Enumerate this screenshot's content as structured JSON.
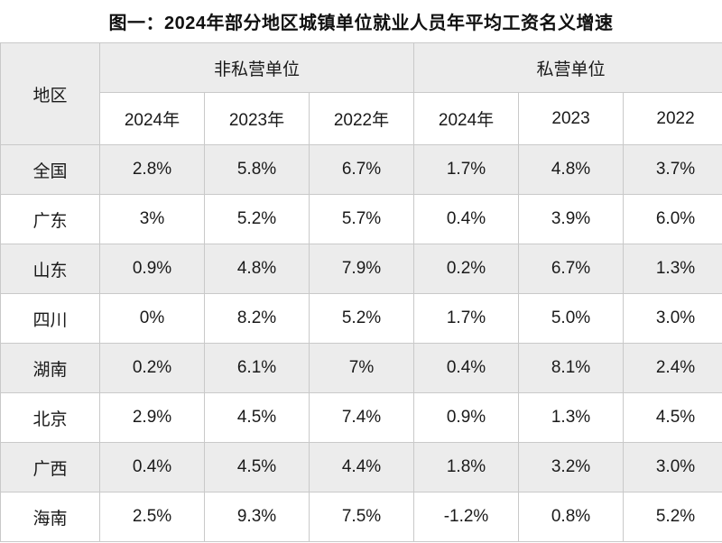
{
  "chart_data": {
    "type": "table",
    "title": "图一：2024年部分地区城镇单位就业人员年平均工资名义增速",
    "region_header": "地区",
    "groups": [
      {
        "label": "非私营单位",
        "years": [
          "2024年",
          "2023年",
          "2022年"
        ]
      },
      {
        "label": "私营单位",
        "years": [
          "2024年",
          "2023",
          "2022"
        ]
      }
    ],
    "rows": [
      {
        "region": "全国",
        "values": [
          "2.8%",
          "5.8%",
          "6.7%",
          "1.7%",
          "4.8%",
          "3.7%"
        ]
      },
      {
        "region": "广东",
        "values": [
          "3%",
          "5.2%",
          "5.7%",
          "0.4%",
          "3.9%",
          "6.0%"
        ]
      },
      {
        "region": "山东",
        "values": [
          "0.9%",
          "4.8%",
          "7.9%",
          "0.2%",
          "6.7%",
          "1.3%"
        ]
      },
      {
        "region": "四川",
        "values": [
          "0%",
          "8.2%",
          "5.2%",
          "1.7%",
          "5.0%",
          "3.0%"
        ]
      },
      {
        "region": "湖南",
        "values": [
          "0.2%",
          "6.1%",
          "7%",
          "0.4%",
          "8.1%",
          "2.4%"
        ]
      },
      {
        "region": "北京",
        "values": [
          "2.9%",
          "4.5%",
          "7.4%",
          "0.9%",
          "1.3%",
          "4.5%"
        ]
      },
      {
        "region": "广西",
        "values": [
          "0.4%",
          "4.5%",
          "4.4%",
          "1.8%",
          "3.2%",
          "3.0%"
        ]
      },
      {
        "region": "海南",
        "values": [
          "2.5%",
          "9.3%",
          "7.5%",
          "-1.2%",
          "0.8%",
          "5.2%"
        ]
      }
    ]
  },
  "colors": {
    "stripe": "#ececec",
    "border": "#c9c9c9",
    "text": "#1a1a1a"
  }
}
